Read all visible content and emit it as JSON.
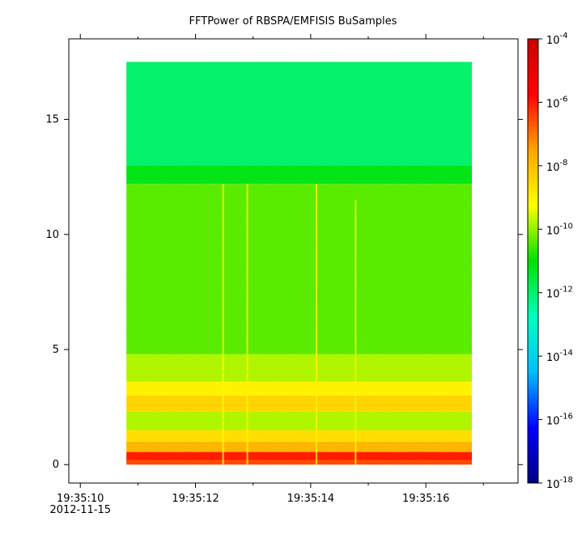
{
  "chart_data": {
    "type": "heatmap",
    "title": "FFTPower of RBSPA/EMFISIS  BuSamples",
    "xlabel": "",
    "ylabel": "",
    "zlabel": "",
    "x_range": [
      "19:35:09.80",
      "19:35:17.60"
    ],
    "x_data_range": [
      "19:35:10.80",
      "19:35:16.80"
    ],
    "x_ticks": [
      {
        "value": "19:35:10",
        "label": "19:35:10",
        "sublabel": "2012-11-15"
      },
      {
        "value": "19:35:12",
        "label": "19:35:12"
      },
      {
        "value": "19:35:14",
        "label": "19:35:14"
      },
      {
        "value": "19:35:16",
        "label": "19:35:16"
      }
    ],
    "x_minor_ticks": [
      "19:35:11",
      "19:35:13",
      "19:35:15",
      "19:35:17"
    ],
    "y_range": [
      -0.8,
      18.5
    ],
    "y_data_range": [
      0,
      17.5
    ],
    "y_ticks": [
      0,
      5,
      10,
      15
    ],
    "z_scale": "log",
    "z_range": [
      1e-18,
      0.0001
    ],
    "colorbar_ticks": [
      {
        "value": 0.0001,
        "mantissa": "10",
        "exp": "-4"
      },
      {
        "value": 1e-06,
        "mantissa": "10",
        "exp": "-6"
      },
      {
        "value": 1e-08,
        "mantissa": "10",
        "exp": "-8"
      },
      {
        "value": 1e-10,
        "mantissa": "10",
        "exp": "-10"
      },
      {
        "value": 1e-12,
        "mantissa": "10",
        "exp": "-12"
      },
      {
        "value": 1e-14,
        "mantissa": "10",
        "exp": "-14"
      },
      {
        "value": 1e-16,
        "mantissa": "10",
        "exp": "-16"
      },
      {
        "value": 1e-18,
        "mantissa": "10",
        "exp": "-18"
      }
    ],
    "colormap": [
      "#00007f",
      "#0000ff",
      "#00bfff",
      "#00ffbf",
      "#00e000",
      "#ffff00",
      "#ffa500",
      "#ff0000",
      "#c80000"
    ],
    "background_bands": [
      {
        "y_from": 0.0,
        "y_to": 0.2,
        "log10_power": -6.5
      },
      {
        "y_from": 0.2,
        "y_to": 0.55,
        "log10_power": -6.0
      },
      {
        "y_from": 0.55,
        "y_to": 1.0,
        "log10_power": -7.8
      },
      {
        "y_from": 1.0,
        "y_to": 1.5,
        "log10_power": -8.6
      },
      {
        "y_from": 1.5,
        "y_to": 2.3,
        "log10_power": -9.8
      },
      {
        "y_from": 2.3,
        "y_to": 3.0,
        "log10_power": -8.4
      },
      {
        "y_from": 3.0,
        "y_to": 3.6,
        "log10_power": -9.0
      },
      {
        "y_from": 3.6,
        "y_to": 4.8,
        "log10_power": -9.8
      },
      {
        "y_from": 4.8,
        "y_to": 12.2,
        "log10_power": -10.4
      },
      {
        "y_from": 12.2,
        "y_to": 13.0,
        "log10_power": -11.2
      },
      {
        "y_from": 13.0,
        "y_to": 17.5,
        "log10_power": -12.0
      }
    ],
    "vertical_streaks": [
      {
        "time": "19:35:12.48",
        "y_from": 0,
        "y_to": 12.2,
        "log10_power": -9.3
      },
      {
        "time": "19:35:12.90",
        "y_from": 0,
        "y_to": 12.2,
        "log10_power": -9.0
      },
      {
        "time": "19:35:14.10",
        "y_from": 0,
        "y_to": 12.2,
        "log10_power": -9.0
      },
      {
        "time": "19:35:14.78",
        "y_from": 0,
        "y_to": 11.5,
        "log10_power": -9.4
      }
    ],
    "grid": false,
    "legend": "colorbar-right"
  }
}
